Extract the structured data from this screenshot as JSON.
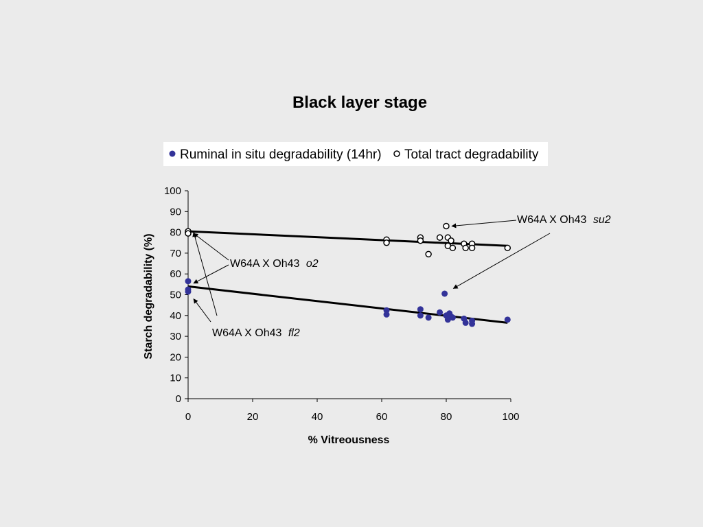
{
  "chart_data": {
    "type": "scatter",
    "title": "Black layer stage",
    "xlabel": "% Vitreousness",
    "ylabel": "Starch degradability (%)",
    "xlim": [
      0,
      100
    ],
    "ylim": [
      0,
      100
    ],
    "xticks": [
      0,
      20,
      40,
      60,
      80,
      100
    ],
    "yticks": [
      0,
      10,
      20,
      30,
      40,
      50,
      60,
      70,
      80,
      90,
      100
    ],
    "grid": false,
    "legend_placement": "top",
    "series": [
      {
        "name": "Ruminal in situ degradability (14hr)",
        "marker": "filled-circle",
        "color": "#333399",
        "points": [
          [
            0,
            56.5
          ],
          [
            0,
            52.5
          ],
          [
            0,
            51.5
          ],
          [
            61.5,
            42.5
          ],
          [
            61.5,
            40.5
          ],
          [
            72,
            43
          ],
          [
            72,
            40
          ],
          [
            74.5,
            39
          ],
          [
            78,
            41.5
          ],
          [
            79.5,
            50.5
          ],
          [
            80,
            40
          ],
          [
            80.5,
            38
          ],
          [
            81,
            41
          ],
          [
            81.5,
            39.5
          ],
          [
            82,
            39
          ],
          [
            85.5,
            38.5
          ],
          [
            86,
            36.5
          ],
          [
            88,
            37.5
          ],
          [
            88,
            36
          ],
          [
            99,
            38
          ]
        ],
        "trend": [
          [
            0,
            54
          ],
          [
            99,
            36.5
          ]
        ]
      },
      {
        "name": "Total tract degradability",
        "marker": "open-circle",
        "color": "#000000",
        "points": [
          [
            0,
            80.5
          ],
          [
            0,
            79.5
          ],
          [
            61.5,
            76.5
          ],
          [
            61.5,
            75
          ],
          [
            72,
            77.5
          ],
          [
            72,
            76
          ],
          [
            74.5,
            69.5
          ],
          [
            78,
            77.5
          ],
          [
            80,
            83
          ],
          [
            80.5,
            77.5
          ],
          [
            80.5,
            73.5
          ],
          [
            81.5,
            76
          ],
          [
            82,
            72.5
          ],
          [
            85.5,
            74.5
          ],
          [
            86,
            72.5
          ],
          [
            88,
            74.5
          ],
          [
            88,
            72.5
          ],
          [
            99,
            72.5
          ]
        ],
        "trend": [
          [
            0,
            80.5
          ],
          [
            99,
            73.5
          ]
        ]
      }
    ],
    "annotations": [
      {
        "label": "W64A X Oh43",
        "mutant": "su2",
        "arrows_to": [
          [
            80,
            83
          ],
          [
            80.5,
            53
          ]
        ]
      },
      {
        "label": "W64A X Oh43",
        "mutant": "o2",
        "arrows_to": [
          [
            0,
            79.5
          ],
          [
            0,
            55.5
          ]
        ]
      },
      {
        "label": "W64A X Oh43",
        "mutant": "fl2",
        "arrows_to": [
          [
            0,
            48
          ],
          [
            0,
            80
          ]
        ]
      }
    ]
  }
}
